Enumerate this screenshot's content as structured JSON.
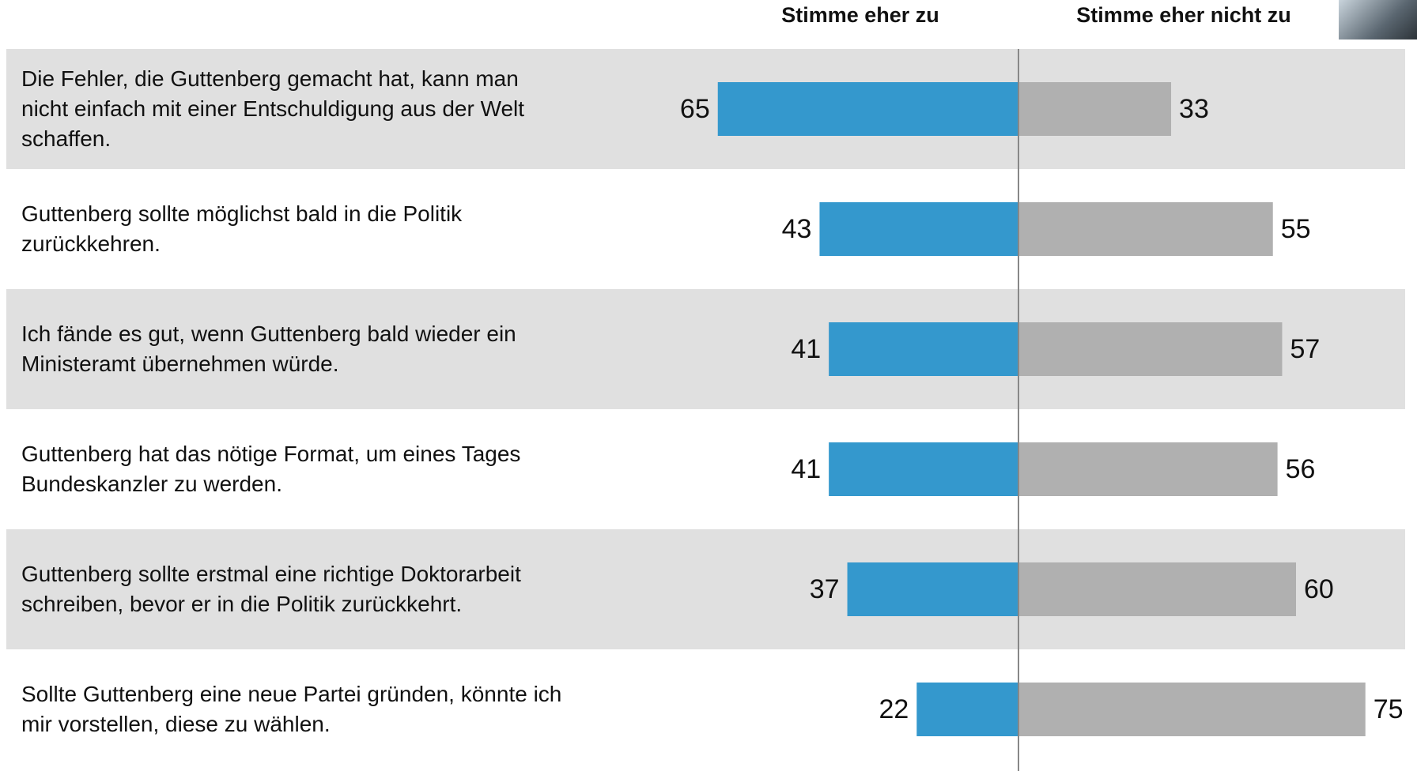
{
  "chart_data": {
    "type": "diverging-bar",
    "categories": [
      "Die Fehler, die Guttenberg gemacht hat, kann man nicht einfach mit einer Entschuldigung aus der Welt schaffen.",
      "Guttenberg sollte möglichst bald in die Politik zurückkehren.",
      "Ich fände es gut, wenn Guttenberg bald wieder ein Ministeramt übernehmen würde.",
      "Guttenberg hat das nötige Format, um eines Tages Bundeskanzler zu werden.",
      "Guttenberg sollte erstmal eine richtige Doktorarbeit schreiben, bevor er in die Politik zurückkehrt.",
      "Sollte Guttenberg eine neue Partei gründen, könnte ich mir vorstellen, diese zu wählen."
    ],
    "series": [
      {
        "name": "Stimme eher zu",
        "color": "#3498cd",
        "values": [
          65,
          43,
          41,
          41,
          37,
          22
        ]
      },
      {
        "name": "Stimme eher nicht zu",
        "color": "#b0b0b0",
        "values": [
          33,
          55,
          57,
          56,
          60,
          75
        ]
      }
    ]
  }
}
